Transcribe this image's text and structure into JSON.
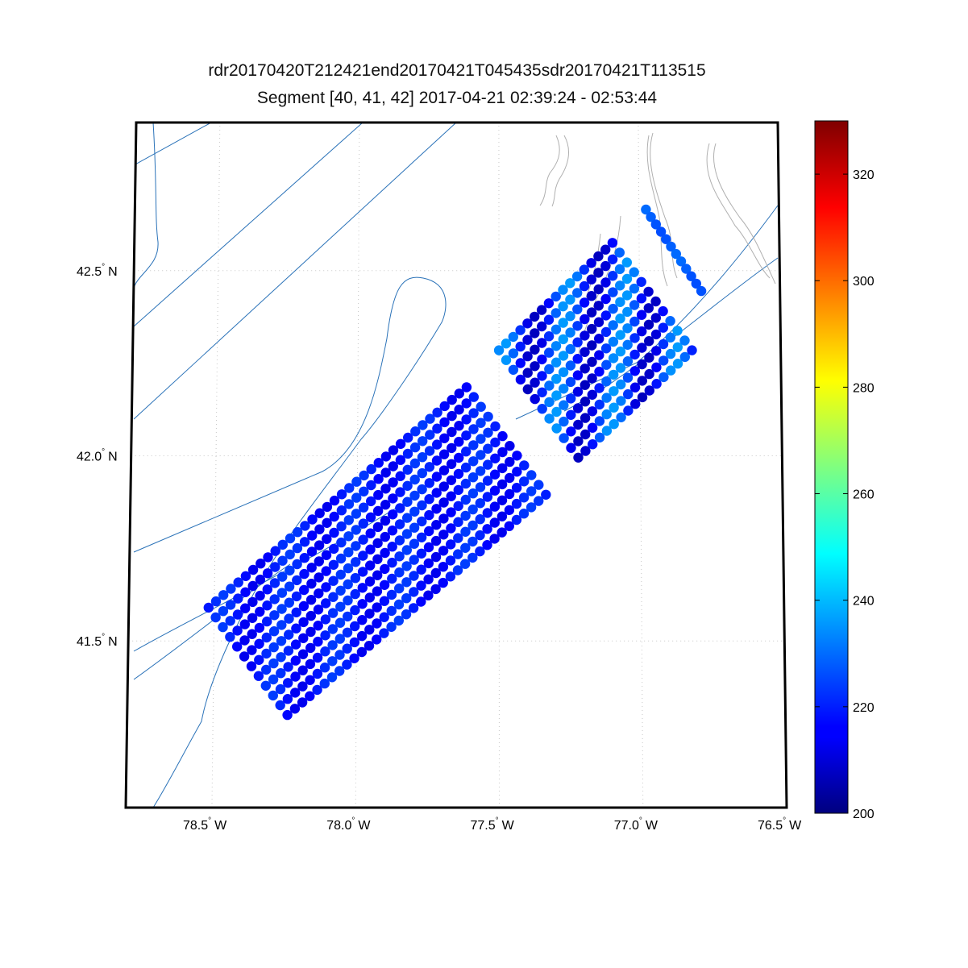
{
  "title": {
    "line1": "rdr20170420T212421end20170421T045435sdr20170421T113515",
    "line2": "Segment [40, 41, 42] 2017-04-21 02:39:24 - 02:53:44"
  },
  "map": {
    "lon_range": [
      -78.8,
      -76.5
    ],
    "lat_range": [
      41.05,
      42.9
    ],
    "lon_ticks": [
      {
        "value": -78.5,
        "label": "78.5",
        "hemi": "W"
      },
      {
        "value": -78.0,
        "label": "78.0",
        "hemi": "W"
      },
      {
        "value": -77.5,
        "label": "77.5",
        "hemi": "W"
      },
      {
        "value": -77.0,
        "label": "77.0",
        "hemi": "W"
      },
      {
        "value": -76.5,
        "label": "76.5",
        "hemi": "W"
      }
    ],
    "lat_ticks": [
      {
        "value": 41.5,
        "label": "41.5",
        "hemi": "N"
      },
      {
        "value": 42.0,
        "label": "42.0",
        "hemi": "N"
      },
      {
        "value": 42.5,
        "label": "42.5",
        "hemi": "N"
      }
    ],
    "grid": "dotted",
    "colors": {
      "track": "#2a72b8",
      "lake": "#b0b0b0",
      "frame": "#000000"
    }
  },
  "colorbar": {
    "min": 200,
    "max": 330,
    "ticks": [
      "200",
      "220",
      "240",
      "260",
      "280",
      "300",
      "320"
    ],
    "colormap": "jet"
  },
  "chart_data": {
    "type": "scatter",
    "title": "rdr20170420T212421end20170421T045435sdr20170421T113515 / Segment [40, 41, 42] 2017-04-21 02:39:24 - 02:53:44",
    "xlabel": "",
    "ylabel": "",
    "xlim": [
      -78.8,
      -76.5
    ],
    "ylim": [
      41.05,
      42.9
    ],
    "colorbar_range": [
      200,
      330
    ],
    "swaths": [
      {
        "segment": "40",
        "center_start": [
          -78.38,
          41.445
        ],
        "center_end": [
          -77.475,
          42.04
        ],
        "cross_half_width_lon": 0.14,
        "cross_half_width_lat": 0.145,
        "scan_lines": 36,
        "points_per_line": 12,
        "value_range": [
          214,
          224
        ]
      },
      {
        "segment": "41",
        "center_start": [
          -77.36,
          42.14
        ],
        "center_end": [
          -76.955,
          42.43
        ],
        "cross_half_width_lon": 0.14,
        "cross_half_width_lat": 0.145,
        "scan_lines": 17,
        "points_per_line": 12,
        "value_range": [
          208,
          236
        ]
      },
      {
        "segment": "42",
        "center_start": [
          -76.975,
          42.665
        ],
        "center_end": [
          -76.78,
          42.445
        ],
        "cross_half_width_lon": 0,
        "cross_half_width_lat": 0,
        "scan_lines": 1,
        "points_per_line": 12,
        "value_range": [
          226,
          230
        ]
      }
    ]
  }
}
